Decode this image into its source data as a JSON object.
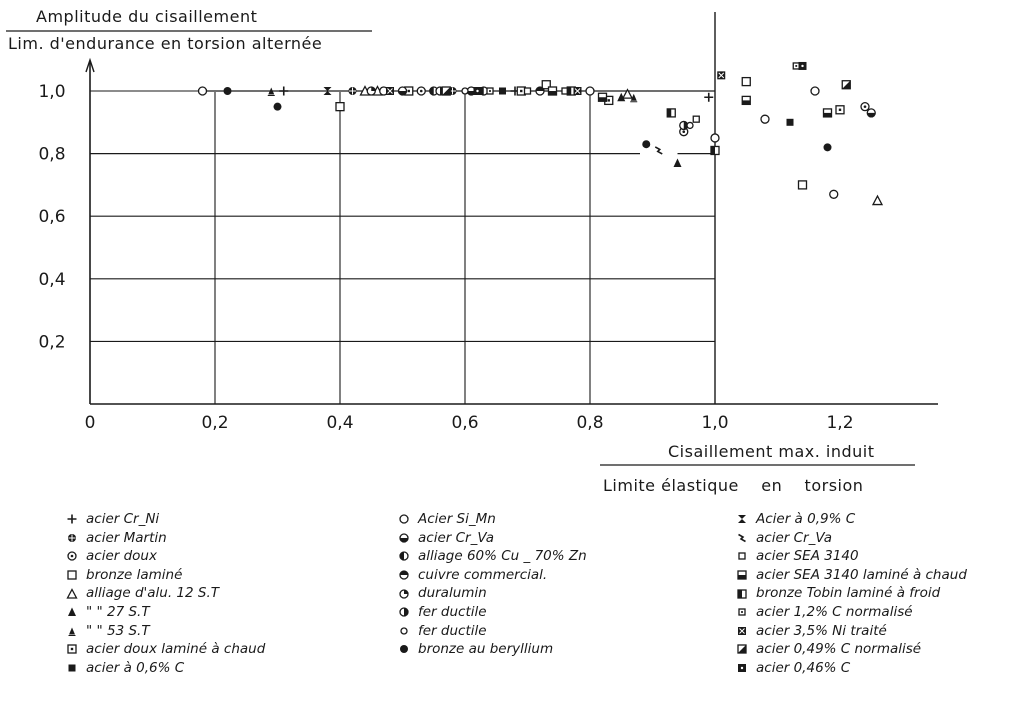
{
  "chart_data": {
    "type": "scatter",
    "ylabel_numerator": "Amplitude du cisaillement",
    "ylabel_denominator": "Lim. d'endurance en torsion alternée",
    "xlabel_numerator": "Cisaillement max. induit",
    "xlabel_denominator": "Limite élastique    en    torsion",
    "xlim": [
      0,
      1.35
    ],
    "ylim": [
      0,
      1.1
    ],
    "x_ticks": [
      "0",
      "0,2",
      "0,4",
      "0,6",
      "0,8",
      "1,0",
      "1,2"
    ],
    "y_ticks": [
      "0,2",
      "0,4",
      "0,6",
      "0,8",
      "1,0"
    ],
    "grid": true,
    "reference_lines": [
      {
        "from": [
          0.18,
          1.0
        ],
        "to": [
          1.0,
          1.0
        ]
      },
      {
        "from": [
          0.0,
          0.8
        ],
        "to": [
          0.88,
          0.8
        ]
      },
      {
        "from": [
          0.94,
          0.8
        ],
        "to": [
          1.0,
          0.8
        ]
      }
    ],
    "series": [
      {
        "name": "acier Cr_Ni",
        "marker": "plus",
        "points": [
          [
            0.31,
            1.0
          ],
          [
            0.68,
            1.0
          ],
          [
            0.99,
            0.98
          ]
        ]
      },
      {
        "name": "acier Martin",
        "marker": "circle-cross",
        "points": [
          [
            0.42,
            1.0
          ],
          [
            0.58,
            1.0
          ],
          [
            0.93,
            0.93
          ]
        ]
      },
      {
        "name": "acier doux",
        "marker": "circle-dot",
        "points": [
          [
            0.53,
            1.0
          ],
          [
            0.95,
            0.87
          ],
          [
            1.24,
            0.95
          ]
        ]
      },
      {
        "name": "bronze laminé",
        "marker": "square-open",
        "points": [
          [
            0.4,
            0.95
          ],
          [
            0.73,
            1.02
          ],
          [
            1.05,
            1.03
          ],
          [
            1.14,
            0.7
          ]
        ]
      },
      {
        "name": "alliage d'alu. 12 S.T",
        "marker": "triangle-open",
        "points": [
          [
            0.44,
            1.0
          ],
          [
            0.46,
            1.0
          ],
          [
            0.86,
            0.99
          ],
          [
            1.26,
            0.65
          ]
        ]
      },
      {
        "name": "\"  \" 27 S.T",
        "marker": "triangle-filled",
        "points": [
          [
            0.85,
            0.98
          ],
          [
            0.94,
            0.77
          ]
        ]
      },
      {
        "name": "\"  \" 53 S.T",
        "marker": "triangle-small",
        "points": [
          [
            0.29,
            1.0
          ],
          [
            0.87,
            0.98
          ]
        ]
      },
      {
        "name": "acier doux laminé à chaud",
        "marker": "square-dot",
        "points": [
          [
            0.51,
            1.0
          ],
          [
            0.69,
            1.0
          ],
          [
            0.83,
            0.97
          ],
          [
            1.2,
            0.94
          ]
        ]
      },
      {
        "name": "acier à 0,6% C",
        "marker": "square-filled",
        "points": [
          [
            0.66,
            1.0
          ],
          [
            1.12,
            0.9
          ]
        ]
      },
      {
        "name": "Acier Si_Mn",
        "marker": "circle-open",
        "points": [
          [
            0.18,
            1.0
          ],
          [
            0.47,
            1.0
          ],
          [
            0.8,
            1.0
          ],
          [
            1.0,
            0.85
          ],
          [
            1.08,
            0.91
          ],
          [
            1.16,
            1.0
          ],
          [
            1.19,
            0.67
          ]
        ]
      },
      {
        "name": "acier Cr_Va",
        "marker": "circle-half-bottom",
        "points": [
          [
            0.5,
            1.0
          ],
          [
            0.61,
            1.0
          ],
          [
            1.25,
            0.93
          ]
        ]
      },
      {
        "name": "alliage 60% Cu _ 70% Zn",
        "marker": "circle-half-left",
        "points": [
          [
            0.55,
            1.0
          ],
          [
            0.63,
            1.0
          ]
        ]
      },
      {
        "name": "cuivre commercial.",
        "marker": "circle-half-top",
        "points": [
          [
            0.72,
            1.0
          ]
        ]
      },
      {
        "name": "duralumin",
        "marker": "circle-quarter",
        "points": [
          [
            0.45,
            1.0
          ]
        ]
      },
      {
        "name": "fer ductile",
        "marker": "circle-half-right",
        "points": [
          [
            0.56,
            1.0
          ],
          [
            0.95,
            0.89
          ]
        ]
      },
      {
        "name": "fer ductile",
        "marker": "circle-small",
        "points": [
          [
            0.6,
            1.0
          ],
          [
            0.96,
            0.89
          ]
        ]
      },
      {
        "name": "bronze au beryllium",
        "marker": "circle-filled",
        "points": [
          [
            0.22,
            1.0
          ],
          [
            0.3,
            0.95
          ],
          [
            0.89,
            0.83
          ],
          [
            1.18,
            0.82
          ]
        ]
      },
      {
        "name": "Acier à 0,9% C",
        "marker": "hourglass",
        "points": [
          [
            0.38,
            1.0
          ]
        ]
      },
      {
        "name": "acier Cr_Va",
        "marker": "bolt",
        "points": [
          [
            0.91,
            0.81
          ]
        ]
      },
      {
        "name": "acier SEA 3140",
        "marker": "square-small-open",
        "points": [
          [
            0.7,
            1.0
          ],
          [
            0.76,
            1.0
          ],
          [
            0.97,
            0.91
          ]
        ]
      },
      {
        "name": "acier SEA 3140 laminé à chaud",
        "marker": "square-half",
        "points": [
          [
            0.74,
            1.0
          ],
          [
            0.82,
            0.98
          ],
          [
            1.05,
            0.97
          ],
          [
            1.18,
            0.93
          ]
        ]
      },
      {
        "name": "bronze Tobin laminé à froid",
        "marker": "square-bar",
        "points": [
          [
            0.77,
            1.0
          ],
          [
            0.93,
            0.93
          ],
          [
            1.0,
            0.81
          ]
        ]
      },
      {
        "name": "acier 1,2% C normalisé",
        "marker": "square-small-dot",
        "points": [
          [
            0.64,
            1.0
          ],
          [
            1.13,
            1.08
          ]
        ]
      },
      {
        "name": "acier 3,5% Ni traité",
        "marker": "square-x",
        "points": [
          [
            0.48,
            1.0
          ],
          [
            0.78,
            1.0
          ],
          [
            1.01,
            1.05
          ]
        ]
      },
      {
        "name": "acier 0,49% C normalisé",
        "marker": "square-corner",
        "points": [
          [
            0.57,
            1.0
          ],
          [
            1.21,
            1.02
          ]
        ]
      },
      {
        "name": "acier 0,46% C",
        "marker": "square-star",
        "points": [
          [
            0.62,
            1.0
          ],
          [
            1.14,
            1.08
          ]
        ]
      }
    ]
  }
}
